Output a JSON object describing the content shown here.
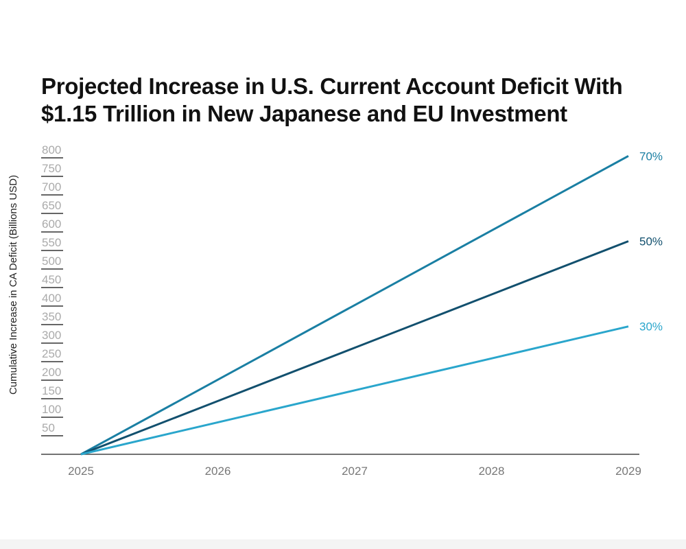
{
  "chart_data": {
    "type": "line",
    "title": "Projected Increase in U.S. Current Account Deficit With $1.15 Trillion in New Japanese and EU Investment",
    "xlabel": "",
    "ylabel": "Cumulative Increase in CA Deficit (Billions USD)",
    "x": [
      2025,
      2026,
      2027,
      2028,
      2029
    ],
    "x_tick_labels": [
      "2025",
      "2026",
      "2027",
      "2028",
      "2029"
    ],
    "y_tick_labels": [
      "50",
      "100",
      "150",
      "200",
      "250",
      "300",
      "350",
      "400",
      "450",
      "500",
      "550",
      "600",
      "650",
      "700",
      "750",
      "800"
    ],
    "ylim": [
      0,
      800
    ],
    "grid": false,
    "legend": "end-of-line labels",
    "series": [
      {
        "name": "70%",
        "values": [
          0,
          201.25,
          402.5,
          603.75,
          805
        ],
        "color": "#1a7fa3"
      },
      {
        "name": "50%",
        "values": [
          0,
          143.75,
          287.5,
          431.25,
          575
        ],
        "color": "#12506e"
      },
      {
        "name": "30%",
        "values": [
          0,
          86.25,
          172.5,
          258.75,
          345
        ],
        "color": "#2aa6cc"
      }
    ]
  }
}
